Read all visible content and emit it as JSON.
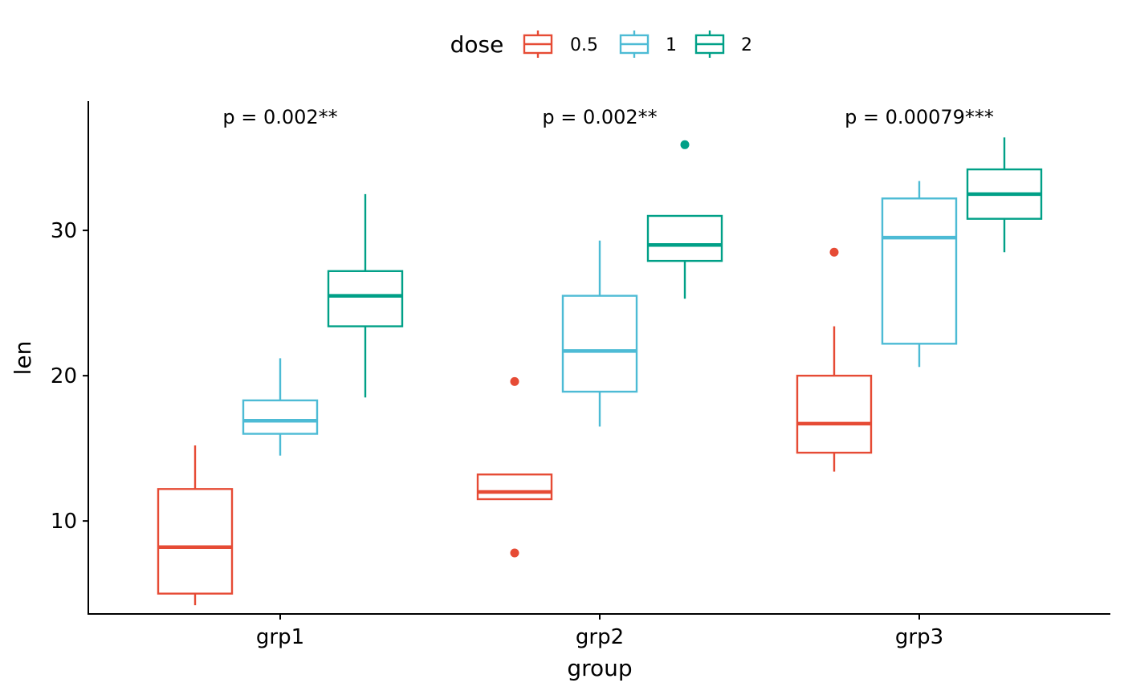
{
  "chart_data": {
    "type": "boxplot",
    "xlabel": "group",
    "ylabel": "len",
    "categories": [
      "grp1",
      "grp2",
      "grp3"
    ],
    "ylim": [
      3.6,
      38.9
    ],
    "yticks": [
      10,
      20,
      30
    ],
    "grid": false,
    "legend": {
      "title": "dose",
      "position": "top",
      "entries": [
        "0.5",
        "1",
        "2"
      ]
    },
    "colors": {
      "0.5": "#E64B35",
      "1": "#4DBBD5",
      "2": "#00A087"
    },
    "annotations": [
      {
        "category": "grp1",
        "text": "p = 0.002**"
      },
      {
        "category": "grp2",
        "text": "p = 0.002**"
      },
      {
        "category": "grp3",
        "text": "p = 0.00079***"
      }
    ],
    "series": [
      {
        "name": "0.5",
        "boxes": [
          {
            "category": "grp1",
            "whisker_low": 4.2,
            "q1": 5.0,
            "median": 8.2,
            "q3": 12.2,
            "whisker_high": 15.2,
            "outliers": []
          },
          {
            "category": "grp2",
            "whisker_low": 11.5,
            "q1": 11.5,
            "median": 12.0,
            "q3": 13.2,
            "whisker_high": 13.2,
            "outliers": [
              7.8,
              19.6
            ]
          },
          {
            "category": "grp3",
            "whisker_low": 13.4,
            "q1": 14.7,
            "median": 16.7,
            "q3": 20.0,
            "whisker_high": 23.4,
            "outliers": [
              28.5
            ]
          }
        ]
      },
      {
        "name": "1",
        "boxes": [
          {
            "category": "grp1",
            "whisker_low": 14.5,
            "q1": 16.0,
            "median": 16.9,
            "q3": 18.3,
            "whisker_high": 21.2,
            "outliers": []
          },
          {
            "category": "grp2",
            "whisker_low": 16.5,
            "q1": 18.9,
            "median": 21.7,
            "q3": 25.5,
            "whisker_high": 29.3,
            "outliers": []
          },
          {
            "category": "grp3",
            "whisker_low": 20.6,
            "q1": 22.2,
            "median": 29.5,
            "q3": 32.2,
            "whisker_high": 33.4,
            "outliers": []
          }
        ]
      },
      {
        "name": "2",
        "boxes": [
          {
            "category": "grp1",
            "whisker_low": 18.5,
            "q1": 23.4,
            "median": 25.5,
            "q3": 27.2,
            "whisker_high": 32.5,
            "outliers": []
          },
          {
            "category": "grp2",
            "whisker_low": 25.3,
            "q1": 27.9,
            "median": 29.0,
            "q3": 31.0,
            "whisker_high": 31.0,
            "outliers": [
              35.9
            ]
          },
          {
            "category": "grp3",
            "whisker_low": 28.5,
            "q1": 30.8,
            "median": 32.5,
            "q3": 34.2,
            "whisker_high": 36.4,
            "outliers": []
          }
        ]
      }
    ]
  }
}
